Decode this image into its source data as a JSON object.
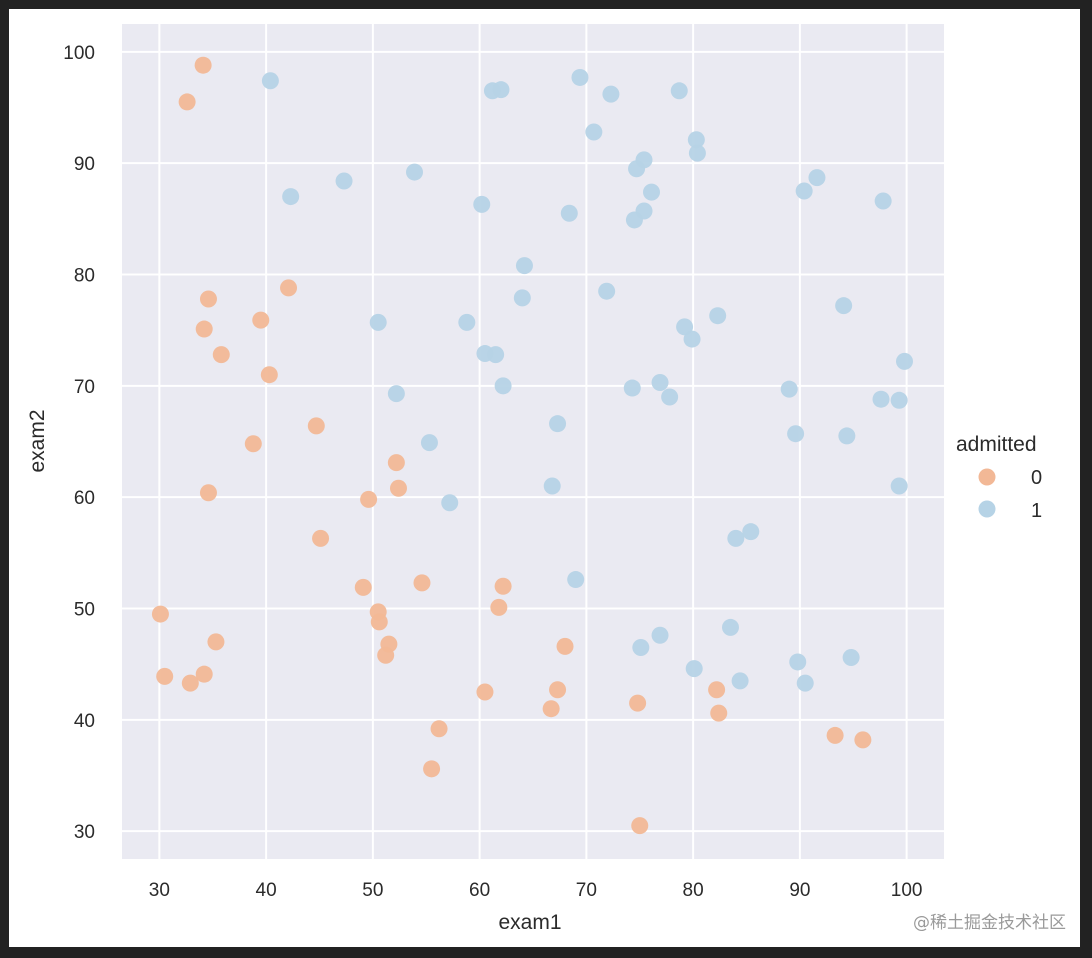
{
  "chart_data": {
    "type": "scatter",
    "xlabel": "exam1",
    "ylabel": "exam2",
    "xlim": [
      26.5,
      103.5
    ],
    "ylim": [
      27.5,
      102.5
    ],
    "xticks": [
      30,
      40,
      50,
      60,
      70,
      80,
      90,
      100
    ],
    "yticks": [
      30,
      40,
      50,
      60,
      70,
      80,
      90,
      100
    ],
    "grid": true,
    "legend": {
      "title": "admitted",
      "placement": "right"
    },
    "series": [
      {
        "name": "0",
        "color": "#f2b896",
        "points": [
          [
            34.1,
            98.8
          ],
          [
            32.6,
            95.5
          ],
          [
            34.6,
            77.8
          ],
          [
            42.1,
            78.8
          ],
          [
            34.2,
            75.1
          ],
          [
            39.5,
            75.9
          ],
          [
            35.8,
            72.8
          ],
          [
            40.3,
            71.0
          ],
          [
            44.7,
            66.4
          ],
          [
            38.8,
            64.8
          ],
          [
            52.2,
            63.1
          ],
          [
            34.6,
            60.4
          ],
          [
            52.4,
            60.8
          ],
          [
            49.6,
            59.8
          ],
          [
            45.1,
            56.3
          ],
          [
            49.1,
            51.9
          ],
          [
            54.6,
            52.3
          ],
          [
            62.2,
            52.0
          ],
          [
            61.8,
            50.1
          ],
          [
            50.5,
            49.7
          ],
          [
            50.6,
            48.8
          ],
          [
            30.1,
            49.5
          ],
          [
            35.3,
            47.0
          ],
          [
            51.5,
            46.8
          ],
          [
            51.2,
            45.8
          ],
          [
            68.0,
            46.6
          ],
          [
            30.5,
            43.9
          ],
          [
            32.9,
            43.3
          ],
          [
            34.2,
            44.1
          ],
          [
            60.5,
            42.5
          ],
          [
            67.3,
            42.7
          ],
          [
            66.7,
            41.0
          ],
          [
            74.8,
            41.5
          ],
          [
            82.2,
            42.7
          ],
          [
            82.4,
            40.6
          ],
          [
            56.2,
            39.2
          ],
          [
            55.5,
            35.6
          ],
          [
            93.3,
            38.6
          ],
          [
            95.9,
            38.2
          ],
          [
            75.0,
            30.5
          ]
        ]
      },
      {
        "name": "1",
        "color": "#b6d3e6",
        "points": [
          [
            40.4,
            97.4
          ],
          [
            61.2,
            96.5
          ],
          [
            62.0,
            96.6
          ],
          [
            69.4,
            97.7
          ],
          [
            72.3,
            96.2
          ],
          [
            78.7,
            96.5
          ],
          [
            70.7,
            92.8
          ],
          [
            80.3,
            92.1
          ],
          [
            80.4,
            90.9
          ],
          [
            75.4,
            90.3
          ],
          [
            74.7,
            89.5
          ],
          [
            53.9,
            89.2
          ],
          [
            47.3,
            88.4
          ],
          [
            42.3,
            87.0
          ],
          [
            76.1,
            87.4
          ],
          [
            91.6,
            88.7
          ],
          [
            90.4,
            87.5
          ],
          [
            97.8,
            86.6
          ],
          [
            60.2,
            86.3
          ],
          [
            68.4,
            85.5
          ],
          [
            75.4,
            85.7
          ],
          [
            74.5,
            84.9
          ],
          [
            64.2,
            80.8
          ],
          [
            64.0,
            77.9
          ],
          [
            71.9,
            78.5
          ],
          [
            94.1,
            77.2
          ],
          [
            82.3,
            76.3
          ],
          [
            50.5,
            75.7
          ],
          [
            58.8,
            75.7
          ],
          [
            79.2,
            75.3
          ],
          [
            79.9,
            74.2
          ],
          [
            60.5,
            72.9
          ],
          [
            61.5,
            72.8
          ],
          [
            99.8,
            72.2
          ],
          [
            62.2,
            70.0
          ],
          [
            74.3,
            69.8
          ],
          [
            76.9,
            70.3
          ],
          [
            77.8,
            69.0
          ],
          [
            89.0,
            69.7
          ],
          [
            52.2,
            69.3
          ],
          [
            97.6,
            68.8
          ],
          [
            99.3,
            68.7
          ],
          [
            67.3,
            66.6
          ],
          [
            89.6,
            65.7
          ],
          [
            94.4,
            65.5
          ],
          [
            55.3,
            64.9
          ],
          [
            66.8,
            61.0
          ],
          [
            99.3,
            61.0
          ],
          [
            57.2,
            59.5
          ],
          [
            84.0,
            56.3
          ],
          [
            85.4,
            56.9
          ],
          [
            69.0,
            52.6
          ],
          [
            83.5,
            48.3
          ],
          [
            76.9,
            47.6
          ],
          [
            75.1,
            46.5
          ],
          [
            94.8,
            45.6
          ],
          [
            89.8,
            45.2
          ],
          [
            80.1,
            44.6
          ],
          [
            84.4,
            43.5
          ],
          [
            90.5,
            43.3
          ]
        ]
      }
    ]
  },
  "watermark": "@稀土掘金技术社区"
}
